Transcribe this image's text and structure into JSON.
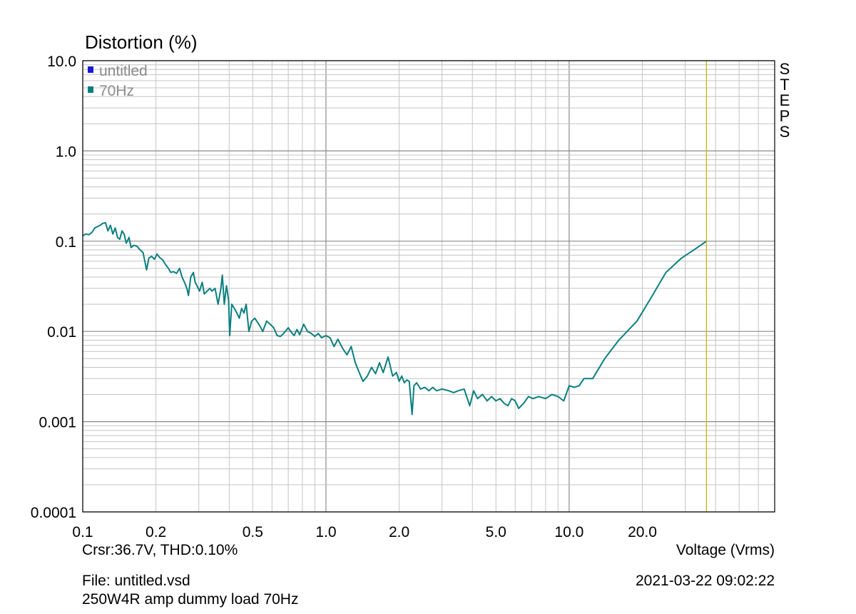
{
  "header": {
    "ylabel": "Distortion (%)"
  },
  "footer": {
    "cursor_readout": "Crsr:36.7V, THD:0.10%",
    "xlabel": "Voltage (Vrms)",
    "file_name": "File: untitled.vsd",
    "datetime": "2021-03-22  09:02:22",
    "description": "250W4R amp dummy load 70Hz"
  },
  "side_label": "STEPS",
  "colors": {
    "trace": "#0a7f7f",
    "legend_untitled": "#1a1ad4",
    "cursor": "#c8b400",
    "grid_major": "#8a8a8a",
    "grid_minor": "#c4c4c4"
  },
  "chart_data": {
    "type": "line",
    "xlabel": "Voltage (Vrms)",
    "ylabel": "Distortion (%)",
    "xscale": "log",
    "yscale": "log",
    "xlim": [
      0.1,
      70
    ],
    "ylim": [
      0.0001,
      10
    ],
    "grid": true,
    "legend_position": "top-left",
    "legend": [
      {
        "name": "untitled",
        "color": "#1a1ad4"
      },
      {
        "name": "70Hz",
        "color": "#0a7f7f"
      }
    ],
    "x_ticks": [
      {
        "value": 0.1,
        "label": "0.1"
      },
      {
        "value": 0.2,
        "label": "0.2"
      },
      {
        "value": 0.5,
        "label": "0.5"
      },
      {
        "value": 1,
        "label": "1.0"
      },
      {
        "value": 2,
        "label": "2.0"
      },
      {
        "value": 5,
        "label": "5.0"
      },
      {
        "value": 10,
        "label": "10.0"
      },
      {
        "value": 20,
        "label": "20.0"
      }
    ],
    "y_ticks": [
      {
        "value": 10,
        "label": "10.0"
      },
      {
        "value": 1,
        "label": "1.0"
      },
      {
        "value": 0.1,
        "label": "0.1"
      },
      {
        "value": 0.01,
        "label": "0.01"
      },
      {
        "value": 0.001,
        "label": "0.001"
      },
      {
        "value": 0.0001,
        "label": "0.0001"
      }
    ],
    "cursor_x": 36.7,
    "series": [
      {
        "name": "70Hz",
        "color": "#0a7f7f",
        "points": [
          [
            0.1,
            0.115
          ],
          [
            0.103,
            0.12
          ],
          [
            0.106,
            0.118
          ],
          [
            0.109,
            0.125
          ],
          [
            0.112,
            0.14
          ],
          [
            0.115,
            0.145
          ],
          [
            0.118,
            0.15
          ],
          [
            0.121,
            0.158
          ],
          [
            0.124,
            0.16
          ],
          [
            0.127,
            0.13
          ],
          [
            0.13,
            0.15
          ],
          [
            0.133,
            0.12
          ],
          [
            0.136,
            0.14
          ],
          [
            0.139,
            0.11
          ],
          [
            0.142,
            0.105
          ],
          [
            0.145,
            0.13
          ],
          [
            0.148,
            0.12
          ],
          [
            0.151,
            0.095
          ],
          [
            0.155,
            0.11
          ],
          [
            0.158,
            0.085
          ],
          [
            0.162,
            0.09
          ],
          [
            0.167,
            0.088
          ],
          [
            0.172,
            0.08
          ],
          [
            0.177,
            0.075
          ],
          [
            0.18,
            0.06
          ],
          [
            0.183,
            0.048
          ],
          [
            0.187,
            0.065
          ],
          [
            0.192,
            0.068
          ],
          [
            0.197,
            0.063
          ],
          [
            0.202,
            0.072
          ],
          [
            0.207,
            0.066
          ],
          [
            0.213,
            0.062
          ],
          [
            0.219,
            0.055
          ],
          [
            0.225,
            0.05
          ],
          [
            0.23,
            0.045
          ],
          [
            0.236,
            0.046
          ],
          [
            0.243,
            0.044
          ],
          [
            0.25,
            0.05
          ],
          [
            0.256,
            0.04
          ],
          [
            0.262,
            0.035
          ],
          [
            0.268,
            0.03
          ],
          [
            0.272,
            0.025
          ],
          [
            0.278,
            0.04
          ],
          [
            0.285,
            0.045
          ],
          [
            0.29,
            0.035
          ],
          [
            0.295,
            0.032
          ],
          [
            0.302,
            0.028
          ],
          [
            0.31,
            0.035
          ],
          [
            0.316,
            0.026
          ],
          [
            0.325,
            0.028
          ],
          [
            0.333,
            0.03
          ],
          [
            0.34,
            0.028
          ],
          [
            0.35,
            0.03
          ],
          [
            0.36,
            0.02
          ],
          [
            0.37,
            0.03
          ],
          [
            0.375,
            0.042
          ],
          [
            0.382,
            0.02
          ],
          [
            0.39,
            0.032
          ],
          [
            0.398,
            0.022
          ],
          [
            0.402,
            0.009
          ],
          [
            0.41,
            0.02
          ],
          [
            0.42,
            0.018
          ],
          [
            0.43,
            0.016
          ],
          [
            0.44,
            0.014
          ],
          [
            0.45,
            0.018
          ],
          [
            0.46,
            0.016
          ],
          [
            0.47,
            0.02
          ],
          [
            0.482,
            0.01
          ],
          [
            0.495,
            0.013
          ],
          [
            0.51,
            0.014
          ],
          [
            0.53,
            0.012
          ],
          [
            0.55,
            0.01
          ],
          [
            0.57,
            0.013
          ],
          [
            0.59,
            0.012
          ],
          [
            0.61,
            0.011
          ],
          [
            0.63,
            0.009
          ],
          [
            0.65,
            0.0088
          ],
          [
            0.67,
            0.0095
          ],
          [
            0.7,
            0.011
          ],
          [
            0.72,
            0.0098
          ],
          [
            0.74,
            0.009
          ],
          [
            0.76,
            0.0105
          ],
          [
            0.78,
            0.0092
          ],
          [
            0.81,
            0.012
          ],
          [
            0.84,
            0.01
          ],
          [
            0.87,
            0.0095
          ],
          [
            0.9,
            0.0088
          ],
          [
            0.93,
            0.0095
          ],
          [
            0.96,
            0.0085
          ],
          [
            1.0,
            0.009
          ],
          [
            1.04,
            0.0085
          ],
          [
            1.08,
            0.0068
          ],
          [
            1.12,
            0.0082
          ],
          [
            1.17,
            0.0065
          ],
          [
            1.22,
            0.0055
          ],
          [
            1.27,
            0.0068
          ],
          [
            1.32,
            0.0045
          ],
          [
            1.37,
            0.0035
          ],
          [
            1.42,
            0.0028
          ],
          [
            1.48,
            0.0032
          ],
          [
            1.54,
            0.004
          ],
          [
            1.6,
            0.0034
          ],
          [
            1.66,
            0.0045
          ],
          [
            1.72,
            0.0035
          ],
          [
            1.8,
            0.0052
          ],
          [
            1.88,
            0.0032
          ],
          [
            1.95,
            0.0035
          ],
          [
            2.0,
            0.0028
          ],
          [
            2.05,
            0.0032
          ],
          [
            2.1,
            0.0027
          ],
          [
            2.15,
            0.0029
          ],
          [
            2.2,
            0.0028
          ],
          [
            2.26,
            0.0012
          ],
          [
            2.3,
            0.0025
          ],
          [
            2.36,
            0.0027
          ],
          [
            2.45,
            0.0023
          ],
          [
            2.55,
            0.0024
          ],
          [
            2.65,
            0.0022
          ],
          [
            2.75,
            0.0024
          ],
          [
            2.85,
            0.0022
          ],
          [
            3.0,
            0.0023
          ],
          [
            3.2,
            0.0022
          ],
          [
            3.35,
            0.0021
          ],
          [
            3.5,
            0.0022
          ],
          [
            3.7,
            0.0023
          ],
          [
            3.9,
            0.0015
          ],
          [
            4.05,
            0.0022
          ],
          [
            4.2,
            0.0018
          ],
          [
            4.4,
            0.002
          ],
          [
            4.6,
            0.0017
          ],
          [
            4.8,
            0.0019
          ],
          [
            5.0,
            0.0017
          ],
          [
            5.2,
            0.0018
          ],
          [
            5.4,
            0.0016
          ],
          [
            5.6,
            0.0015
          ],
          [
            5.8,
            0.0018
          ],
          [
            6.0,
            0.0017
          ],
          [
            6.2,
            0.0014
          ],
          [
            6.5,
            0.0016
          ],
          [
            6.8,
            0.0019
          ],
          [
            7.1,
            0.0018
          ],
          [
            7.5,
            0.0019
          ],
          [
            8.0,
            0.0018
          ],
          [
            8.5,
            0.002
          ],
          [
            9.0,
            0.0019
          ],
          [
            9.5,
            0.0017
          ],
          [
            10.0,
            0.0025
          ],
          [
            10.5,
            0.0024
          ],
          [
            11.0,
            0.0025
          ],
          [
            11.5,
            0.003
          ],
          [
            12.5,
            0.003
          ],
          [
            14.0,
            0.005
          ],
          [
            16.0,
            0.008
          ],
          [
            19.0,
            0.013
          ],
          [
            22.0,
            0.025
          ],
          [
            25.0,
            0.045
          ],
          [
            29.0,
            0.065
          ],
          [
            33.0,
            0.082
          ],
          [
            36.7,
            0.1
          ]
        ]
      }
    ]
  }
}
